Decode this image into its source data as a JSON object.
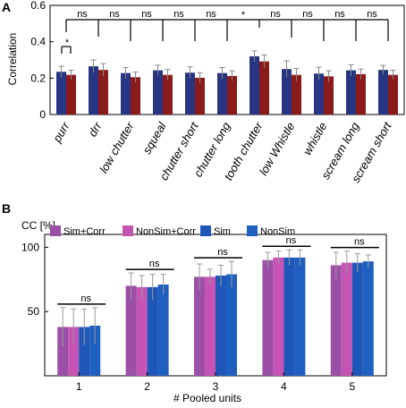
{
  "panel_a": {
    "letter": "A",
    "sig_marks": [
      "*",
      "ns",
      "ns",
      "ns",
      "ns",
      "ns",
      "*",
      "ns",
      "ns",
      "ns",
      "ns"
    ]
  },
  "panel_b": {
    "letter": "B",
    "ns_labels": [
      "ns",
      "ns",
      "ns",
      "ns",
      "ns"
    ]
  },
  "colors": {
    "navy": "#283583",
    "darkred": "#8b1a1a",
    "purple": "#9b4fa6",
    "magenta": "#c554b5",
    "blue1": "#1f57b8",
    "blue2": "#1e5fc0"
  },
  "chart_data": [
    {
      "type": "bar",
      "title": "",
      "xlabel": "",
      "ylabel": "Correlation",
      "ylim": [
        0,
        0.6
      ],
      "yticks": [
        "0",
        "0.2",
        "0.4",
        "0.6"
      ],
      "grid": false,
      "categories": [
        "purr",
        "drr",
        "low chutter",
        "squeal",
        "chutter short",
        "chutter long",
        "tooth chutter",
        "low Whistle",
        "whistle",
        "scream long",
        "scream short"
      ],
      "series": [
        {
          "values": [
            0.235,
            0.265,
            0.228,
            0.243,
            0.23,
            0.228,
            0.32,
            0.25,
            0.225,
            0.243,
            0.245
          ],
          "errors": [
            0.03,
            0.035,
            0.03,
            0.028,
            0.032,
            0.03,
            0.03,
            0.045,
            0.035,
            0.03,
            0.025
          ]
        },
        {
          "values": [
            0.218,
            0.245,
            0.205,
            0.218,
            0.202,
            0.212,
            0.292,
            0.218,
            0.21,
            0.222,
            0.218
          ],
          "errors": [
            0.025,
            0.035,
            0.028,
            0.03,
            0.028,
            0.028,
            0.035,
            0.035,
            0.03,
            0.028,
            0.025
          ]
        }
      ]
    },
    {
      "type": "bar",
      "title": "",
      "xlabel": "# Pooled units",
      "ylabel": "CC [%]",
      "ylim": [
        0,
        110
      ],
      "yticks": [
        "50",
        "100"
      ],
      "grid": false,
      "legend_position": "top",
      "categories": [
        "1",
        "2",
        "3",
        "4",
        "5"
      ],
      "series": [
        {
          "name": "Sim+Corr",
          "values": [
            38,
            70,
            77,
            90,
            86
          ],
          "errors": [
            15,
            10,
            10,
            6,
            10
          ]
        },
        {
          "name": "NonSim+Corr",
          "values": [
            38,
            69,
            77,
            92,
            88
          ],
          "errors": [
            14,
            9,
            6,
            5,
            9
          ]
        },
        {
          "name": "Sim",
          "values": [
            38,
            69,
            78,
            92,
            88
          ],
          "errors": [
            14,
            10,
            8,
            6,
            7
          ]
        },
        {
          "name": "NonSim",
          "values": [
            39,
            71,
            79,
            92,
            89
          ],
          "errors": [
            14,
            8,
            10,
            6,
            5
          ]
        }
      ]
    }
  ]
}
